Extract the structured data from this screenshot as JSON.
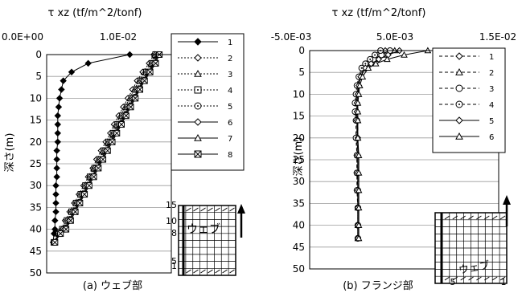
{
  "chart_data": [
    {
      "type": "line",
      "title": "",
      "caption": "(a)  ウェブ部",
      "xlabel": "τ xz  (tf/m^2/tonf)",
      "ylabel": "深さ(m)",
      "x_tick_labels": [
        "0.0E+00",
        "1.0E-02"
      ],
      "y_tick_labels": [
        "0",
        "5",
        "10",
        "15",
        "20",
        "25",
        "30",
        "35",
        "40",
        "45",
        "50"
      ],
      "xlim": [
        0.0,
        0.0135
      ],
      "ylim": [
        0,
        50
      ],
      "y_inverted": true,
      "grid": "horizontal",
      "legend_placement": "top-right",
      "depths": [
        0,
        2,
        4,
        6,
        8,
        10,
        12,
        14,
        16,
        18,
        20,
        22,
        24,
        26,
        28,
        30,
        32,
        34,
        36,
        38,
        40,
        41,
        43
      ],
      "series": [
        {
          "name": "1",
          "marker": "diamond-filled",
          "dash": "solid",
          "values": [
            0.009,
            0.0045,
            0.0027,
            0.0018,
            0.0016,
            0.0014,
            0.0013,
            0.0012,
            0.0012,
            0.0012,
            0.0012,
            0.0011,
            0.0011,
            0.0011,
            0.0011,
            0.001,
            0.001,
            0.001,
            0.001,
            0.0009,
            0.0009,
            0.0008,
            0.0007
          ]
        },
        {
          "name": "2",
          "marker": "diamond-open",
          "dash": "dotted",
          "values": [
            0.0116,
            0.0111,
            0.0104,
            0.0098,
            0.0093,
            0.0088,
            0.0083,
            0.0078,
            0.0073,
            0.0069,
            0.0064,
            0.0059,
            0.0054,
            0.005,
            0.0045,
            0.004,
            0.0035,
            0.003,
            0.0025,
            0.002,
            0.0016,
            0.0012,
            0.0008
          ]
        },
        {
          "name": "3",
          "marker": "triangle-open",
          "dash": "dotted",
          "values": [
            0.0117,
            0.0113,
            0.0106,
            0.01,
            0.0095,
            0.009,
            0.0085,
            0.008,
            0.0075,
            0.0071,
            0.0066,
            0.0061,
            0.0056,
            0.0051,
            0.0047,
            0.0042,
            0.0037,
            0.0032,
            0.0027,
            0.0022,
            0.0017,
            0.0013,
            0.0008
          ]
        },
        {
          "name": "4",
          "marker": "square-dot",
          "dash": "dotted",
          "values": [
            0.0118,
            0.0114,
            0.0108,
            0.0102,
            0.0097,
            0.0092,
            0.0087,
            0.0082,
            0.0077,
            0.0072,
            0.0067,
            0.0062,
            0.0057,
            0.0052,
            0.0047,
            0.0042,
            0.0037,
            0.0032,
            0.0027,
            0.0022,
            0.0017,
            0.0013,
            0.0008
          ]
        },
        {
          "name": "5",
          "marker": "circle-dot",
          "dash": "dotted",
          "values": [
            0.0119,
            0.0115,
            0.0109,
            0.0103,
            0.0098,
            0.0093,
            0.0088,
            0.0083,
            0.0078,
            0.0073,
            0.0068,
            0.0063,
            0.0058,
            0.0053,
            0.0048,
            0.0043,
            0.0038,
            0.0033,
            0.0028,
            0.0023,
            0.0018,
            0.0013,
            0.0008
          ]
        },
        {
          "name": "6",
          "marker": "diamond-open",
          "dash": "solid",
          "values": [
            0.012,
            0.0116,
            0.011,
            0.0104,
            0.0099,
            0.0094,
            0.0089,
            0.0084,
            0.0079,
            0.0074,
            0.0069,
            0.0064,
            0.0059,
            0.0054,
            0.0049,
            0.0044,
            0.0039,
            0.0034,
            0.0029,
            0.0024,
            0.0019,
            0.0014,
            0.0008
          ]
        },
        {
          "name": "7",
          "marker": "triangle-open",
          "dash": "solid",
          "values": [
            0.0121,
            0.0117,
            0.0111,
            0.0105,
            0.01,
            0.0095,
            0.009,
            0.0085,
            0.008,
            0.0075,
            0.007,
            0.0065,
            0.006,
            0.0055,
            0.005,
            0.0045,
            0.004,
            0.0035,
            0.003,
            0.0025,
            0.002,
            0.0014,
            0.0008
          ]
        },
        {
          "name": "8",
          "marker": "square-x",
          "dash": "solid",
          "values": [
            0.0122,
            0.0118,
            0.0112,
            0.0106,
            0.0101,
            0.0096,
            0.0091,
            0.0086,
            0.0081,
            0.0076,
            0.0071,
            0.0066,
            0.0061,
            0.0056,
            0.0051,
            0.0046,
            0.0041,
            0.0036,
            0.0031,
            0.0026,
            0.0021,
            0.0015,
            0.0009
          ]
        }
      ],
      "inset": {
        "labels": [
          "15",
          "10",
          "8",
          "5",
          "1"
        ],
        "text": "ウェブ"
      }
    },
    {
      "type": "line",
      "title": "",
      "caption": "(b)  フランジ部",
      "xlabel": "τ xz  (tf/m^2/tonf)",
      "ylabel": "深さ(m)",
      "x_tick_labels": [
        "-5.0E-03",
        "5.0E-03",
        "1.5E-02"
      ],
      "y_tick_labels": [
        "0",
        "5",
        "10",
        "15",
        "20",
        "25",
        "30",
        "35",
        "40",
        "45",
        "50"
      ],
      "xlim": [
        -0.005,
        0.015
      ],
      "ylim": [
        0,
        50
      ],
      "y_inverted": true,
      "grid": "horizontal",
      "legend_placement": "top-right",
      "depths": [
        0,
        1,
        2,
        3,
        4,
        6,
        8,
        10,
        12,
        14,
        16,
        20,
        24,
        28,
        32,
        36,
        40,
        43
      ],
      "series": [
        {
          "name": "1",
          "marker": "diamond-open",
          "dash": "dashed",
          "values": [
            0.003,
            0.0022,
            0.0016,
            0.001,
            0.0006,
            0.0003,
            0.0001,
            0.0,
            0.0,
            0.0,
            0.0,
            0.0,
            0.0001,
            0.0001,
            0.0001,
            0.0001,
            0.0001,
            0.0001
          ]
        },
        {
          "name": "2",
          "marker": "triangle-open",
          "dash": "dashed",
          "values": [
            0.004,
            0.003,
            0.002,
            0.0013,
            0.0008,
            0.0004,
            0.0002,
            0.0001,
            0.0,
            0.0,
            0.0001,
            0.0001,
            0.0001,
            0.0001,
            0.0001,
            0.0001,
            0.0001,
            0.0001
          ]
        },
        {
          "name": "3",
          "marker": "circle-open",
          "dash": "dashed",
          "values": [
            0.0035,
            0.0026,
            0.0018,
            0.0012,
            0.0007,
            0.0003,
            0.0001,
            0.0,
            -0.0001,
            -0.0001,
            0.0,
            0.0,
            0.0,
            0.0,
            0.0001,
            0.0001,
            0.0001,
            0.0001
          ]
        },
        {
          "name": "4",
          "marker": "circle-dot",
          "dash": "dashed",
          "values": [
            0.0025,
            0.0019,
            0.0014,
            0.0009,
            0.0005,
            0.0002,
            0.0,
            -0.0001,
            -0.0002,
            -0.0002,
            -0.0001,
            -0.0001,
            0.0,
            0.0,
            0.0,
            0.0001,
            0.0001,
            0.0001
          ]
        },
        {
          "name": "5",
          "marker": "diamond-open",
          "dash": "solid",
          "values": [
            0.0045,
            0.0033,
            0.0023,
            0.0015,
            0.0009,
            0.0004,
            0.0002,
            0.0001,
            0.0,
            0.0,
            0.0,
            0.0001,
            0.0001,
            0.0001,
            0.0001,
            0.0001,
            0.0001,
            0.0001
          ]
        },
        {
          "name": "6",
          "marker": "triangle-open",
          "dash": "solid",
          "values": [
            0.0075,
            0.005,
            0.0032,
            0.002,
            0.0012,
            0.0006,
            0.0003,
            0.0002,
            0.0001,
            0.0001,
            0.0001,
            0.0001,
            0.0002,
            0.0002,
            0.0002,
            0.0002,
            0.0002,
            0.0002
          ]
        }
      ],
      "inset": {
        "labels": [
          "5",
          "1"
        ],
        "text": "ウェブ"
      }
    }
  ]
}
